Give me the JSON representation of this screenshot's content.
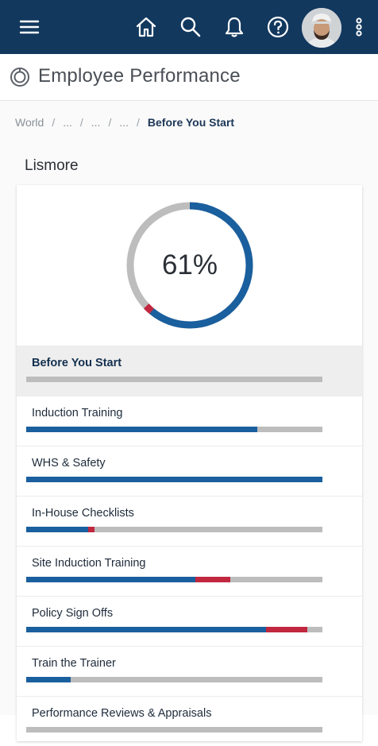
{
  "header": {
    "icons": [
      "menu-icon",
      "home-icon",
      "search-icon",
      "bell-icon",
      "help-icon",
      "more-vert-icon"
    ]
  },
  "title": {
    "text": "Employee Performance"
  },
  "breadcrumb": {
    "items": [
      "World",
      "...",
      "...",
      "...",
      "Before You Start"
    ],
    "separator": "/"
  },
  "site": {
    "name": "Lismore"
  },
  "summary": {
    "percent_label": "61%",
    "complete": 0.61,
    "overdue": 0.02,
    "colors": {
      "complete": "#1a5f9e",
      "overdue": "#c1273f",
      "remaining": "#bdbdbd"
    }
  },
  "modules": [
    {
      "label": "Before You Start",
      "complete": 0.0,
      "overdue": 0.0,
      "active": true
    },
    {
      "label": "Induction Training",
      "complete": 0.78,
      "overdue": 0.0,
      "active": false
    },
    {
      "label": "WHS & Safety",
      "complete": 1.0,
      "overdue": 0.0,
      "active": false
    },
    {
      "label": "In-House Checklists",
      "complete": 0.21,
      "overdue": 0.02,
      "active": false
    },
    {
      "label": "Site Induction Training",
      "complete": 0.57,
      "overdue": 0.12,
      "active": false
    },
    {
      "label": "Policy Sign Offs",
      "complete": 0.81,
      "overdue": 0.14,
      "active": false
    },
    {
      "label": "Train the Trainer",
      "complete": 0.15,
      "overdue": 0.0,
      "active": false
    },
    {
      "label": "Performance Reviews & Appraisals",
      "complete": 0.0,
      "overdue": 0.0,
      "active": false
    }
  ]
}
